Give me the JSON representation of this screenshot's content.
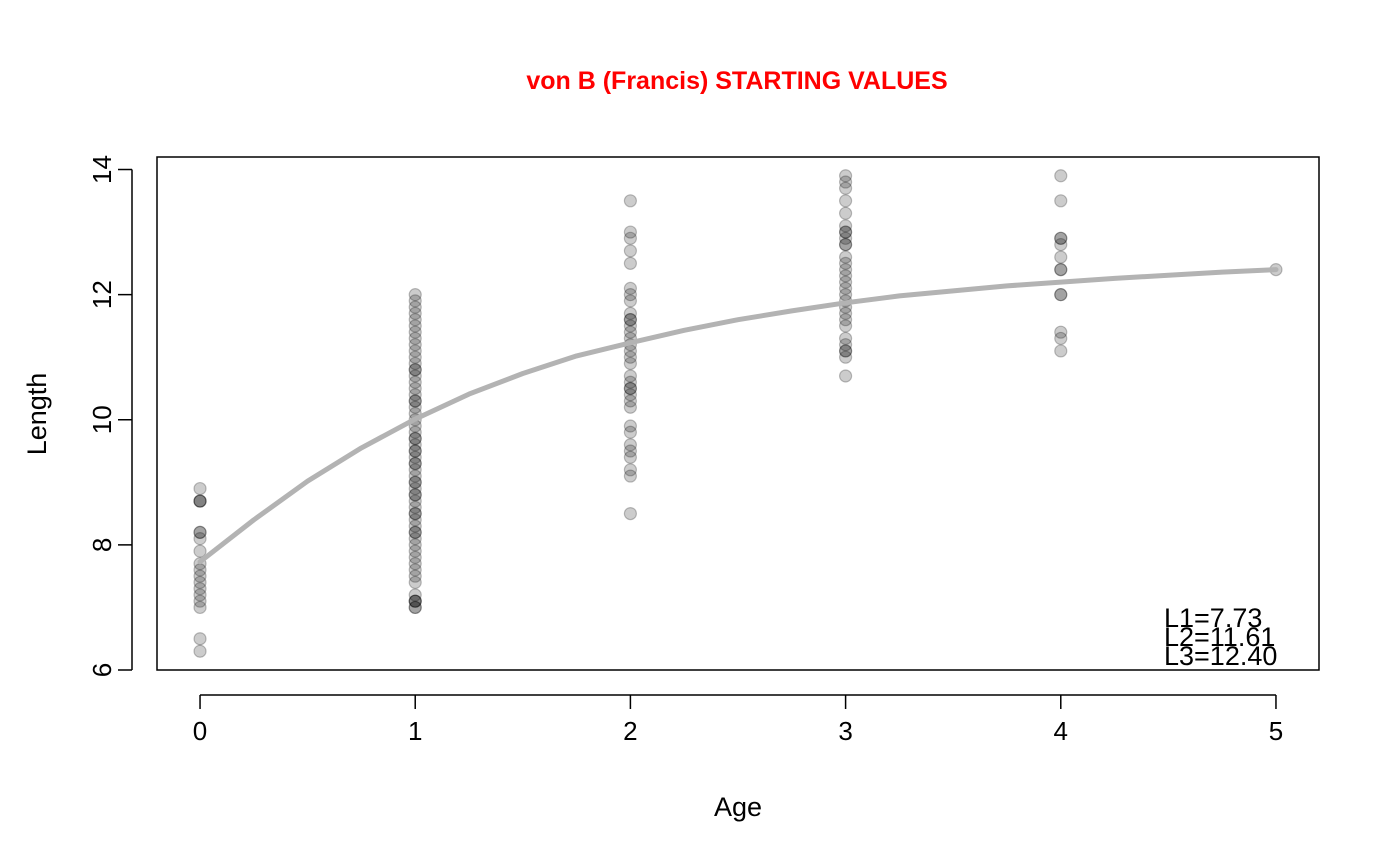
{
  "chart_data": {
    "type": "scatter",
    "title": "von B (Francis) STARTING VALUES",
    "title_color": "#FF0000",
    "xlabel": "Age",
    "ylabel": "Length",
    "xlim": [
      -0.2,
      5.2
    ],
    "ylim": [
      6,
      14.2
    ],
    "x_ticks": [
      0,
      1,
      2,
      3,
      4,
      5
    ],
    "y_ticks": [
      6,
      8,
      10,
      12,
      14
    ],
    "x_tick_labels": [
      "0",
      "1",
      "2",
      "3",
      "4",
      "5"
    ],
    "y_tick_labels": [
      "6",
      "8",
      "10",
      "12",
      "14"
    ],
    "grid": false,
    "point_color": "#000000",
    "point_opacity": 0.2,
    "curve_color": "#B3B3B3",
    "series": [
      {
        "type": "scatter",
        "points": [
          [
            0,
            6.3
          ],
          [
            0,
            6.5
          ],
          [
            0,
            7.0
          ],
          [
            0,
            7.1
          ],
          [
            0,
            7.2
          ],
          [
            0,
            7.3
          ],
          [
            0,
            7.4
          ],
          [
            0,
            7.5
          ],
          [
            0,
            7.6
          ],
          [
            0,
            7.7
          ],
          [
            0,
            7.9
          ],
          [
            0,
            8.1
          ],
          [
            0,
            8.2
          ],
          [
            0,
            8.2
          ],
          [
            0,
            8.7
          ],
          [
            0,
            8.7
          ],
          [
            0,
            8.7
          ],
          [
            0,
            8.9
          ],
          [
            1,
            7.0
          ],
          [
            1,
            7.0
          ],
          [
            1,
            7.1
          ],
          [
            1,
            7.1
          ],
          [
            1,
            7.2
          ],
          [
            1,
            7.4
          ],
          [
            1,
            7.5
          ],
          [
            1,
            7.6
          ],
          [
            1,
            7.7
          ],
          [
            1,
            7.8
          ],
          [
            1,
            7.9
          ],
          [
            1,
            8.0
          ],
          [
            1,
            8.1
          ],
          [
            1,
            8.2
          ],
          [
            1,
            8.3
          ],
          [
            1,
            8.4
          ],
          [
            1,
            8.5
          ],
          [
            1,
            8.6
          ],
          [
            1,
            8.7
          ],
          [
            1,
            8.8
          ],
          [
            1,
            8.9
          ],
          [
            1,
            9.0
          ],
          [
            1,
            9.1
          ],
          [
            1,
            9.2
          ],
          [
            1,
            9.3
          ],
          [
            1,
            9.4
          ],
          [
            1,
            9.5
          ],
          [
            1,
            9.6
          ],
          [
            1,
            9.7
          ],
          [
            1,
            9.8
          ],
          [
            1,
            9.9
          ],
          [
            1,
            10.0
          ],
          [
            1,
            10.1
          ],
          [
            1,
            10.2
          ],
          [
            1,
            10.3
          ],
          [
            1,
            10.4
          ],
          [
            1,
            10.5
          ],
          [
            1,
            10.6
          ],
          [
            1,
            10.7
          ],
          [
            1,
            10.8
          ],
          [
            1,
            10.9
          ],
          [
            1,
            11.0
          ],
          [
            1,
            11.1
          ],
          [
            1,
            11.2
          ],
          [
            1,
            11.3
          ],
          [
            1,
            11.4
          ],
          [
            1,
            11.5
          ],
          [
            1,
            11.6
          ],
          [
            1,
            11.7
          ],
          [
            1,
            11.8
          ],
          [
            1,
            11.9
          ],
          [
            1,
            12.0
          ],
          [
            1,
            10.8
          ],
          [
            1,
            10.3
          ],
          [
            1,
            9.7
          ],
          [
            1,
            9.3
          ],
          [
            1,
            8.8
          ],
          [
            1,
            8.5
          ],
          [
            1,
            8.2
          ],
          [
            1,
            7.1
          ],
          [
            1,
            9.0
          ],
          [
            1,
            9.5
          ],
          [
            2,
            8.5
          ],
          [
            2,
            9.1
          ],
          [
            2,
            9.2
          ],
          [
            2,
            9.4
          ],
          [
            2,
            9.5
          ],
          [
            2,
            9.6
          ],
          [
            2,
            9.8
          ],
          [
            2,
            9.9
          ],
          [
            2,
            10.2
          ],
          [
            2,
            10.3
          ],
          [
            2,
            10.4
          ],
          [
            2,
            10.5
          ],
          [
            2,
            10.6
          ],
          [
            2,
            10.7
          ],
          [
            2,
            10.9
          ],
          [
            2,
            11.0
          ],
          [
            2,
            11.1
          ],
          [
            2,
            11.2
          ],
          [
            2,
            11.3
          ],
          [
            2,
            11.4
          ],
          [
            2,
            11.5
          ],
          [
            2,
            11.6
          ],
          [
            2,
            11.7
          ],
          [
            2,
            11.9
          ],
          [
            2,
            12.0
          ],
          [
            2,
            12.1
          ],
          [
            2,
            12.5
          ],
          [
            2,
            12.7
          ],
          [
            2,
            12.9
          ],
          [
            2,
            13.0
          ],
          [
            2,
            13.5
          ],
          [
            2,
            11.6
          ],
          [
            2,
            10.5
          ],
          [
            3,
            10.7
          ],
          [
            3,
            11.0
          ],
          [
            3,
            11.1
          ],
          [
            3,
            11.2
          ],
          [
            3,
            11.3
          ],
          [
            3,
            11.5
          ],
          [
            3,
            11.6
          ],
          [
            3,
            11.7
          ],
          [
            3,
            11.8
          ],
          [
            3,
            11.9
          ],
          [
            3,
            12.0
          ],
          [
            3,
            12.1
          ],
          [
            3,
            12.2
          ],
          [
            3,
            12.3
          ],
          [
            3,
            12.4
          ],
          [
            3,
            12.5
          ],
          [
            3,
            12.6
          ],
          [
            3,
            12.8
          ],
          [
            3,
            12.9
          ],
          [
            3,
            13.0
          ],
          [
            3,
            13.1
          ],
          [
            3,
            13.3
          ],
          [
            3,
            13.5
          ],
          [
            3,
            13.7
          ],
          [
            3,
            13.8
          ],
          [
            3,
            13.9
          ],
          [
            3,
            12.8
          ],
          [
            3,
            13.0
          ],
          [
            3,
            11.1
          ],
          [
            4,
            11.1
          ],
          [
            4,
            11.3
          ],
          [
            4,
            11.4
          ],
          [
            4,
            12.0
          ],
          [
            4,
            12.0
          ],
          [
            4,
            12.4
          ],
          [
            4,
            12.4
          ],
          [
            4,
            12.6
          ],
          [
            4,
            12.8
          ],
          [
            4,
            12.9
          ],
          [
            4,
            12.9
          ],
          [
            4,
            13.5
          ],
          [
            4,
            13.9
          ],
          [
            5,
            12.4
          ]
        ]
      },
      {
        "type": "line",
        "x": [
          0,
          0.25,
          0.5,
          0.75,
          1,
          1.25,
          1.5,
          1.75,
          2,
          2.25,
          2.5,
          2.75,
          3,
          3.25,
          3.5,
          3.75,
          4,
          4.25,
          4.5,
          4.75,
          5
        ],
        "y": [
          7.73,
          8.4,
          9.02,
          9.55,
          10.01,
          10.41,
          10.74,
          11.02,
          11.23,
          11.43,
          11.6,
          11.74,
          11.87,
          11.98,
          12.06,
          12.14,
          12.2,
          12.26,
          12.31,
          12.36,
          12.4
        ]
      }
    ],
    "legend": {
      "position": "bottom-right",
      "entries": [
        "L1=7.73",
        "L2=11.61",
        "L3=12.40"
      ]
    }
  }
}
